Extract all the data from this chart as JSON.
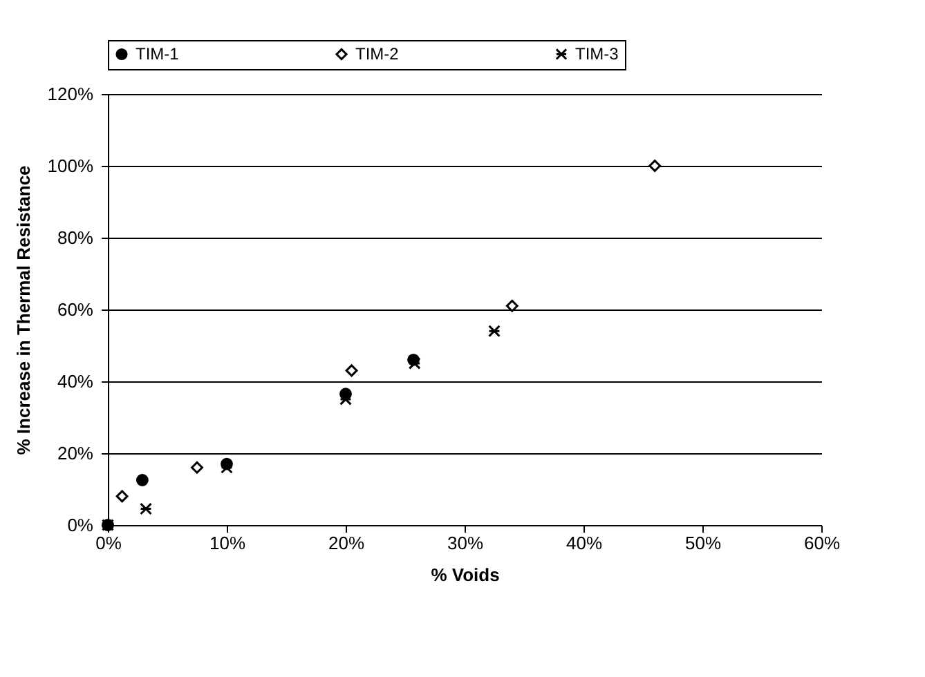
{
  "chart_data": {
    "type": "scatter",
    "xlabel": "% Voids",
    "ylabel": "% Increase in Thermal Resistance",
    "xlim": [
      0,
      60
    ],
    "ylim": [
      0,
      120
    ],
    "xticks": [
      {
        "value": 0,
        "label": "0%"
      },
      {
        "value": 10,
        "label": "10%"
      },
      {
        "value": 20,
        "label": "20%"
      },
      {
        "value": 30,
        "label": "30%"
      },
      {
        "value": 40,
        "label": "40%"
      },
      {
        "value": 50,
        "label": "50%"
      },
      {
        "value": 60,
        "label": "60%"
      }
    ],
    "yticks": [
      {
        "value": 0,
        "label": "0%"
      },
      {
        "value": 20,
        "label": "20%"
      },
      {
        "value": 40,
        "label": "40%"
      },
      {
        "value": 60,
        "label": "60%"
      },
      {
        "value": 80,
        "label": "80%"
      },
      {
        "value": 100,
        "label": "100%"
      },
      {
        "value": 120,
        "label": "120%"
      }
    ],
    "grid": "y",
    "legend": "top",
    "series": [
      {
        "name": "TIM-1",
        "color": "#000000",
        "marker": "circle",
        "x": [
          0,
          2.9,
          10,
          20,
          25.7
        ],
        "values": [
          0,
          12.5,
          17,
          36.5,
          46
        ]
      },
      {
        "name": "TIM-2",
        "color": "#000000",
        "marker": "diamond",
        "x": [
          1.2,
          7.5,
          20.5,
          34,
          46
        ],
        "values": [
          8,
          16,
          43,
          61,
          100
        ]
      },
      {
        "name": "TIM-3",
        "color": "#000000",
        "marker": "cross",
        "x": [
          0,
          3.2,
          10,
          20,
          25.8,
          32.5
        ],
        "values": [
          0,
          4.5,
          16,
          35,
          45,
          54
        ]
      }
    ]
  }
}
